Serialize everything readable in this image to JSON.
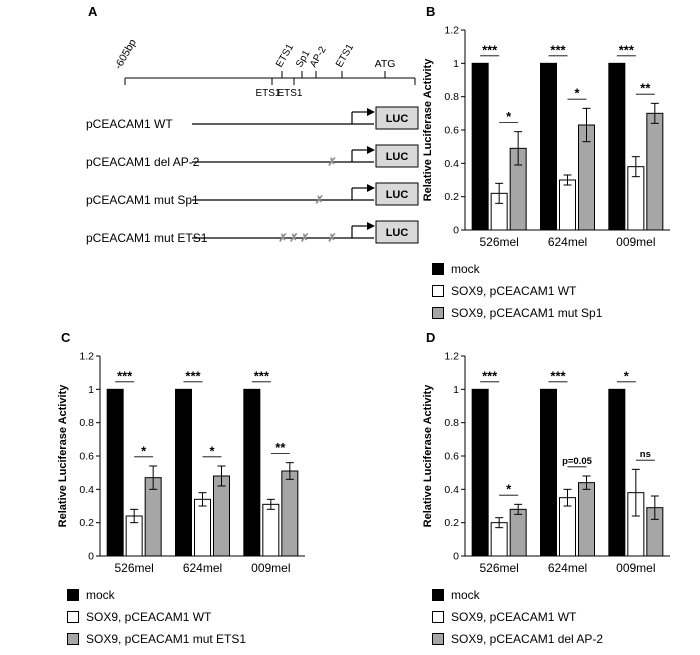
{
  "panels": {
    "a": {
      "label": "A"
    },
    "b": {
      "label": "B"
    },
    "c": {
      "label": "C"
    },
    "d": {
      "label": "D"
    }
  },
  "panel_a": {
    "scale_label": "-605bp",
    "sites_above": [
      "ETS1",
      "Sp1",
      "AP-2",
      "ETS1"
    ],
    "sites_below": [
      "ETS1",
      "ETS1"
    ],
    "start_codon_label": "ATG",
    "reporter_label": "LUC",
    "reporter_fill": "#d9d9d9",
    "mutation_mark_symbol": "✗",
    "mutation_mark_color": "#8c8c8c",
    "constructs": [
      {
        "name": "pCEACAM1 WT",
        "mark_positions": []
      },
      {
        "name": "pCEACAM1 del AP-2",
        "mark_positions": [
          0.77
        ]
      },
      {
        "name": "pCEACAM1 mut Sp1",
        "mark_positions": [
          0.7
        ]
      },
      {
        "name": "pCEACAM1 mut ETS1",
        "mark_positions": [
          0.5,
          0.56,
          0.62,
          0.77
        ]
      }
    ]
  },
  "chart_data": [
    {
      "panel": "B",
      "type": "bar",
      "title": "",
      "xlabel": "",
      "ylabel": "Relative Luciferase Activity",
      "ylim": [
        0,
        1.2
      ],
      "yticks": [
        0,
        0.2,
        0.4,
        0.6,
        0.8,
        1,
        1.2
      ],
      "grid": false,
      "legend_position": "below",
      "categories": [
        "526mel",
        "624mel",
        "009mel"
      ],
      "series": [
        {
          "name": "mock",
          "color": "#000000",
          "values": [
            1,
            1,
            1
          ],
          "errors": [
            0,
            0,
            0
          ]
        },
        {
          "name": "SOX9, pCEACAM1 WT",
          "color": "#ffffff",
          "values": [
            0.22,
            0.3,
            0.38
          ],
          "errors": [
            0.06,
            0.03,
            0.06
          ]
        },
        {
          "name": "SOX9, pCEACAM1 mut Sp1",
          "color": "#a6a6a6",
          "values": [
            0.49,
            0.63,
            0.7
          ],
          "errors": [
            0.1,
            0.1,
            0.06
          ]
        }
      ],
      "sig_mock_vs_wt": [
        "***",
        "***",
        "***"
      ],
      "sig_wt_vs_mut": [
        "*",
        "*",
        "**"
      ]
    },
    {
      "panel": "C",
      "type": "bar",
      "title": "",
      "xlabel": "",
      "ylabel": "Relative Luciferase Activity",
      "ylim": [
        0,
        1.2
      ],
      "yticks": [
        0,
        0.2,
        0.4,
        0.6,
        0.8,
        1,
        1.2
      ],
      "grid": false,
      "legend_position": "below",
      "categories": [
        "526mel",
        "624mel",
        "009mel"
      ],
      "series": [
        {
          "name": "mock",
          "color": "#000000",
          "values": [
            1,
            1,
            1
          ],
          "errors": [
            0,
            0,
            0
          ]
        },
        {
          "name": "SOX9, pCEACAM1 WT",
          "color": "#ffffff",
          "values": [
            0.24,
            0.34,
            0.31
          ],
          "errors": [
            0.04,
            0.04,
            0.03
          ]
        },
        {
          "name": "SOX9, pCEACAM1 mut ETS1",
          "color": "#a6a6a6",
          "values": [
            0.47,
            0.48,
            0.51
          ],
          "errors": [
            0.07,
            0.06,
            0.05
          ]
        }
      ],
      "sig_mock_vs_wt": [
        "***",
        "***",
        "***"
      ],
      "sig_wt_vs_mut": [
        "*",
        "*",
        "**"
      ]
    },
    {
      "panel": "D",
      "type": "bar",
      "title": "",
      "xlabel": "",
      "ylabel": "Relative Luciferase Activity",
      "ylim": [
        0,
        1.2
      ],
      "yticks": [
        0,
        0.2,
        0.4,
        0.6,
        0.8,
        1,
        1.2
      ],
      "grid": false,
      "legend_position": "below",
      "categories": [
        "526mel",
        "624mel",
        "009mel"
      ],
      "series": [
        {
          "name": "mock",
          "color": "#000000",
          "values": [
            1,
            1,
            1
          ],
          "errors": [
            0,
            0,
            0
          ]
        },
        {
          "name": "SOX9, pCEACAM1 WT",
          "color": "#ffffff",
          "values": [
            0.2,
            0.35,
            0.38
          ],
          "errors": [
            0.03,
            0.05,
            0.14
          ]
        },
        {
          "name": "SOX9, pCEACAM1 del AP-2",
          "color": "#a6a6a6",
          "values": [
            0.28,
            0.44,
            0.29
          ],
          "errors": [
            0.03,
            0.04,
            0.07
          ]
        }
      ],
      "sig_mock_vs_wt": [
        "***",
        "***",
        "*"
      ],
      "sig_wt_vs_mut": [
        "*",
        "p=0.05",
        "ns"
      ]
    }
  ]
}
